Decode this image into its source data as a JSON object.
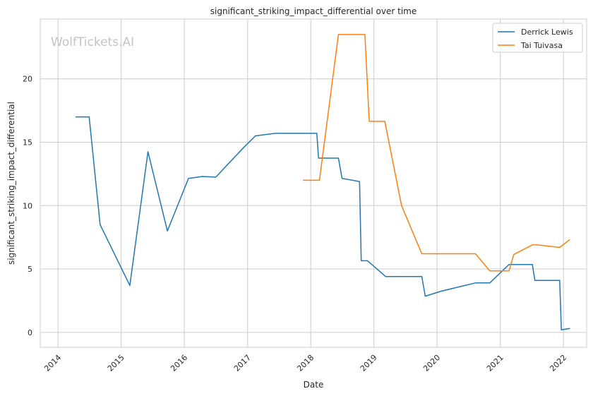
{
  "chart_data": {
    "type": "line",
    "title": "significant_striking_impact_differential over time",
    "xlabel": "Date",
    "ylabel": "significant_striking_impact_differential",
    "watermark": "WolfTickets.AI",
    "xlim": [
      "2013-09-20",
      "2022-05-15"
    ],
    "ylim": [
      -1.18,
      24.72
    ],
    "x_ticks": [
      "2014",
      "2015",
      "2016",
      "2017",
      "2018",
      "2019",
      "2020",
      "2021",
      "2022"
    ],
    "y_ticks": [
      0,
      5,
      10,
      15,
      20
    ],
    "grid": true,
    "legend_position": "top-right",
    "colors": {
      "Derrick Lewis": "#1f77b4",
      "Tai Tuivasa": "#ff7f0e",
      "grid": "#cccccc",
      "frame": "#cccccc",
      "watermark": "#c4c4c4"
    },
    "series": [
      {
        "name": "Derrick Lewis",
        "color": "#1f77b4",
        "points": [
          [
            "2014-04-15",
            17.0
          ],
          [
            "2014-06-30",
            17.0
          ],
          [
            "2014-09-01",
            8.5
          ],
          [
            "2015-02-20",
            3.7
          ],
          [
            "2015-06-05",
            14.25
          ],
          [
            "2015-09-25",
            8.0
          ],
          [
            "2016-01-25",
            12.15
          ],
          [
            "2016-04-15",
            12.3
          ],
          [
            "2016-07-01",
            12.25
          ],
          [
            "2016-12-10",
            14.6
          ],
          [
            "2017-02-15",
            15.5
          ],
          [
            "2017-06-10",
            15.7
          ],
          [
            "2018-02-05",
            15.7
          ],
          [
            "2018-02-15",
            13.75
          ],
          [
            "2018-06-10",
            13.75
          ],
          [
            "2018-07-01",
            12.15
          ],
          [
            "2018-10-10",
            11.9
          ],
          [
            "2018-10-20",
            5.65
          ],
          [
            "2018-11-25",
            5.65
          ],
          [
            "2019-03-10",
            4.4
          ],
          [
            "2019-10-05",
            4.4
          ],
          [
            "2019-10-25",
            2.85
          ],
          [
            "2020-01-25",
            3.25
          ],
          [
            "2020-08-10",
            3.9
          ],
          [
            "2020-11-01",
            3.9
          ],
          [
            "2021-02-20",
            5.35
          ],
          [
            "2021-07-05",
            5.35
          ],
          [
            "2021-07-20",
            4.1
          ],
          [
            "2021-12-10",
            4.1
          ],
          [
            "2021-12-20",
            0.2
          ],
          [
            "2022-02-05",
            0.3
          ]
        ]
      },
      {
        "name": "Tai Tuivasa",
        "color": "#ff7f0e",
        "points": [
          [
            "2017-11-20",
            12.0
          ],
          [
            "2018-02-20",
            12.0
          ],
          [
            "2018-06-10",
            23.5
          ],
          [
            "2018-11-10",
            23.5
          ],
          [
            "2018-12-05",
            16.65
          ],
          [
            "2019-03-05",
            16.65
          ],
          [
            "2019-06-10",
            10.0
          ],
          [
            "2019-10-05",
            6.2
          ],
          [
            "2020-08-10",
            6.2
          ],
          [
            "2020-11-01",
            4.85
          ],
          [
            "2021-02-20",
            4.85
          ],
          [
            "2021-03-20",
            6.15
          ],
          [
            "2021-07-05",
            6.9
          ],
          [
            "2021-08-01",
            6.9
          ],
          [
            "2021-12-10",
            6.7
          ],
          [
            "2022-02-05",
            7.3
          ]
        ]
      }
    ]
  }
}
